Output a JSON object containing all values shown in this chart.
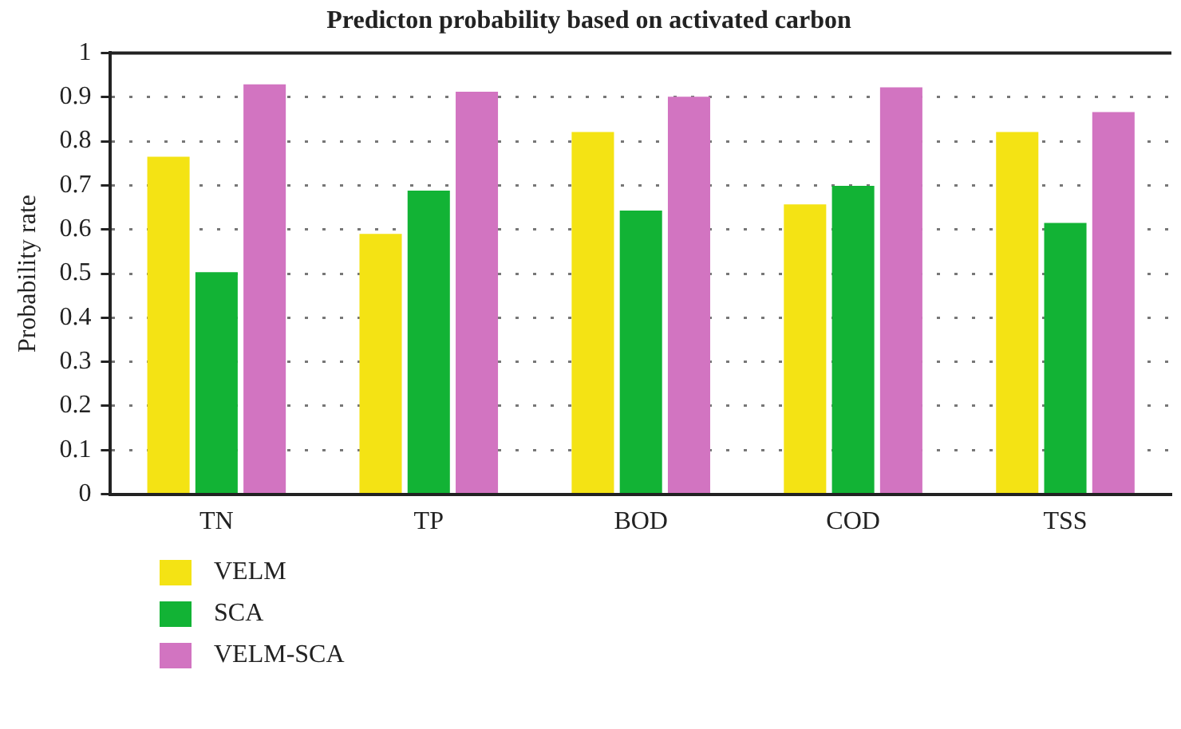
{
  "chart_data": {
    "type": "bar",
    "title": "Predicton probability based on activated carbon",
    "ylabel": "Probability rate",
    "categories": [
      "TN",
      "TP",
      "BOD",
      "COD",
      "TSS"
    ],
    "series": [
      {
        "name": "VELM",
        "color": "#f4e314",
        "values": [
          0.765,
          0.59,
          0.821,
          0.657,
          0.821
        ]
      },
      {
        "name": "SCA",
        "color": "#12b335",
        "values": [
          0.503,
          0.688,
          0.643,
          0.699,
          0.615
        ]
      },
      {
        "name": "VELM-SCA",
        "color": "#d274c1",
        "values": [
          0.929,
          0.912,
          0.901,
          0.922,
          0.866
        ]
      }
    ],
    "ylim": [
      0,
      1
    ],
    "yticks": [
      0,
      0.1,
      0.2,
      0.3,
      0.4,
      0.5,
      0.6,
      0.7,
      0.8,
      0.9,
      1
    ],
    "grid": "y",
    "legend": "bottom left"
  }
}
